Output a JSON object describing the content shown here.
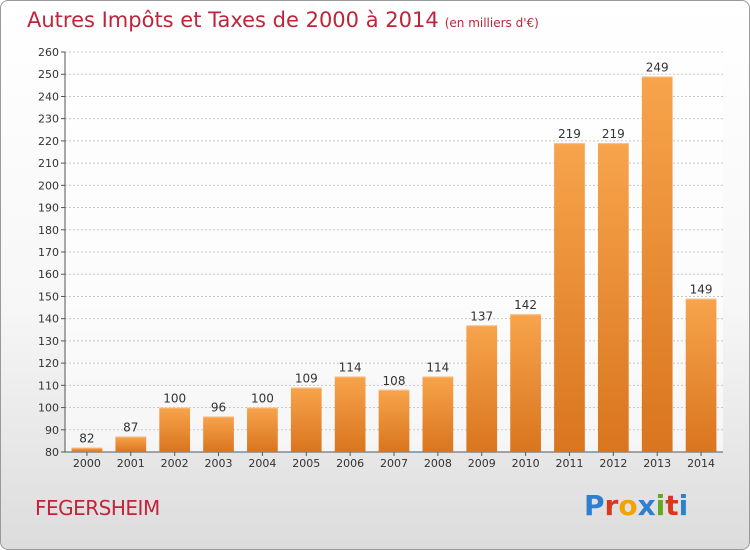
{
  "header": {
    "title": "Autres Impôts et Taxes de 2000 à 2014",
    "subtitle": "(en milliers d'€)"
  },
  "footer": {
    "commune": "FEGERSHEIM",
    "logo_letters": [
      "P",
      "r",
      "o",
      "x",
      "i",
      "t",
      "i"
    ],
    "logo_colors": [
      "#2f7fd0",
      "#d9371e",
      "#f0a400",
      "#2f7fd0",
      "#63a821",
      "#d9371e",
      "#2f7fd0"
    ]
  },
  "colors": {
    "bar_top": "#f7a44c",
    "bar_bottom": "#d9751e",
    "grid": "#c8c8c8",
    "text_accent": "#c0243a"
  },
  "chart_data": {
    "type": "bar",
    "title": "Autres Impôts et Taxes de 2000 à 2014",
    "subtitle": "(en milliers d'€)",
    "xlabel": "",
    "ylabel": "",
    "categories": [
      "2000",
      "2001",
      "2002",
      "2003",
      "2004",
      "2005",
      "2006",
      "2007",
      "2008",
      "2009",
      "2010",
      "2011",
      "2012",
      "2013",
      "2014"
    ],
    "values": [
      82,
      87,
      100,
      96,
      100,
      109,
      114,
      108,
      114,
      137,
      142,
      219,
      219,
      249,
      149
    ],
    "ylim": [
      80,
      260
    ],
    "yticks": [
      80,
      90,
      100,
      110,
      120,
      130,
      140,
      150,
      160,
      170,
      180,
      190,
      200,
      210,
      220,
      230,
      240,
      250,
      260
    ],
    "grid": true,
    "legend": "none"
  }
}
